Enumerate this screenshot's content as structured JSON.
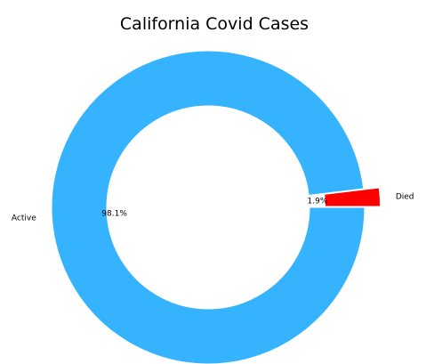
{
  "chart_data": {
    "type": "pie",
    "title": "California Covid  Cases",
    "donut": true,
    "slices": [
      {
        "label": "Died",
        "percent_label": "1.9%",
        "value": 1.9,
        "color": "#ff0000",
        "exploded": true
      },
      {
        "label": "Active",
        "percent_label": "98.1%",
        "value": 98.1,
        "color": "#36b3ff",
        "exploded": false
      }
    ],
    "start_angle_deg": 0,
    "direction": "counterclockwise",
    "legend": "none"
  }
}
